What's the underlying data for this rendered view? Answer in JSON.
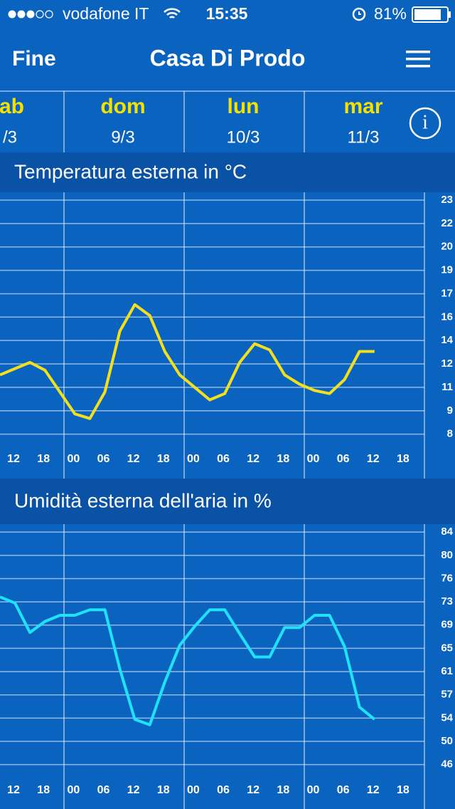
{
  "status_bar": {
    "carrier": "vodafone IT",
    "time": "15:35",
    "battery": "81%"
  },
  "nav": {
    "back": "Fine",
    "title": "Casa Di Prodo"
  },
  "days": [
    {
      "name": "ab",
      "date": "/3"
    },
    {
      "name": "dom",
      "date": "9/3"
    },
    {
      "name": "lun",
      "date": "10/3"
    },
    {
      "name": "mar",
      "date": "11/3"
    }
  ],
  "chart_data": [
    {
      "type": "line",
      "title": "Temperatura esterna in °C",
      "categories": [
        null,
        "12",
        null,
        "18",
        null,
        "00",
        null,
        "06",
        null,
        "12",
        null,
        "18",
        null,
        "00",
        null,
        "06",
        null,
        "12",
        null,
        "18",
        null,
        "00",
        null,
        "06",
        null,
        "12",
        null,
        "18"
      ],
      "values": [
        11.8,
        12.2,
        12.6,
        12.1,
        10.7,
        9.3,
        9.0,
        10.7,
        14.6,
        16.3,
        15.6,
        13.3,
        11.8,
        11.0,
        10.2,
        10.6,
        12.6,
        13.8,
        13.4,
        11.8,
        11.2,
        10.8,
        10.6,
        11.5,
        13.3,
        13.3,
        null,
        null
      ],
      "color": "#f2e01e",
      "ylim": [
        7.3,
        23.5
      ],
      "yticks": [
        23,
        {
          "value": 21.5,
          "label": "22"
        },
        20,
        {
          "value": 18.5,
          "label": "19"
        },
        17,
        {
          "value": 15.5,
          "label": "16"
        },
        14,
        {
          "value": 12.5,
          "label": "12"
        },
        11,
        {
          "value": 9.5,
          "label": "9"
        },
        8
      ],
      "grid": true
    },
    {
      "type": "line",
      "title": "Umidità esterna dell'aria in %",
      "categories": [
        null,
        "12",
        null,
        "18",
        null,
        "00",
        null,
        "06",
        null,
        "12",
        null,
        "18",
        null,
        "00",
        null,
        "06",
        null,
        "12",
        null,
        "18",
        null,
        "00",
        null,
        "06",
        null,
        "12",
        null,
        "18"
      ],
      "values": [
        73.4,
        72.4,
        67.6,
        69.4,
        70.4,
        70.4,
        71.3,
        71.3,
        61.6,
        53.4,
        52.5,
        59.5,
        65.5,
        68.6,
        71.3,
        71.3,
        67.4,
        63.6,
        63.6,
        68.4,
        68.4,
        70.4,
        70.4,
        65.3,
        55.4,
        53.4,
        null,
        null
      ],
      "color": "#1fe2ff",
      "ylim": [
        44.1,
        85.3
      ],
      "yticks": [
        84,
        {
          "value": 80.2,
          "label": "80"
        },
        {
          "value": 76.4,
          "label": "76"
        },
        {
          "value": 72.6,
          "label": "73"
        },
        {
          "value": 68.8,
          "label": "69"
        },
        65,
        {
          "value": 61.2,
          "label": "61"
        },
        {
          "value": 57.4,
          "label": "57"
        },
        {
          "value": 53.6,
          "label": "54"
        },
        {
          "value": 49.8,
          "label": "50"
        },
        46
      ],
      "grid": true
    }
  ]
}
